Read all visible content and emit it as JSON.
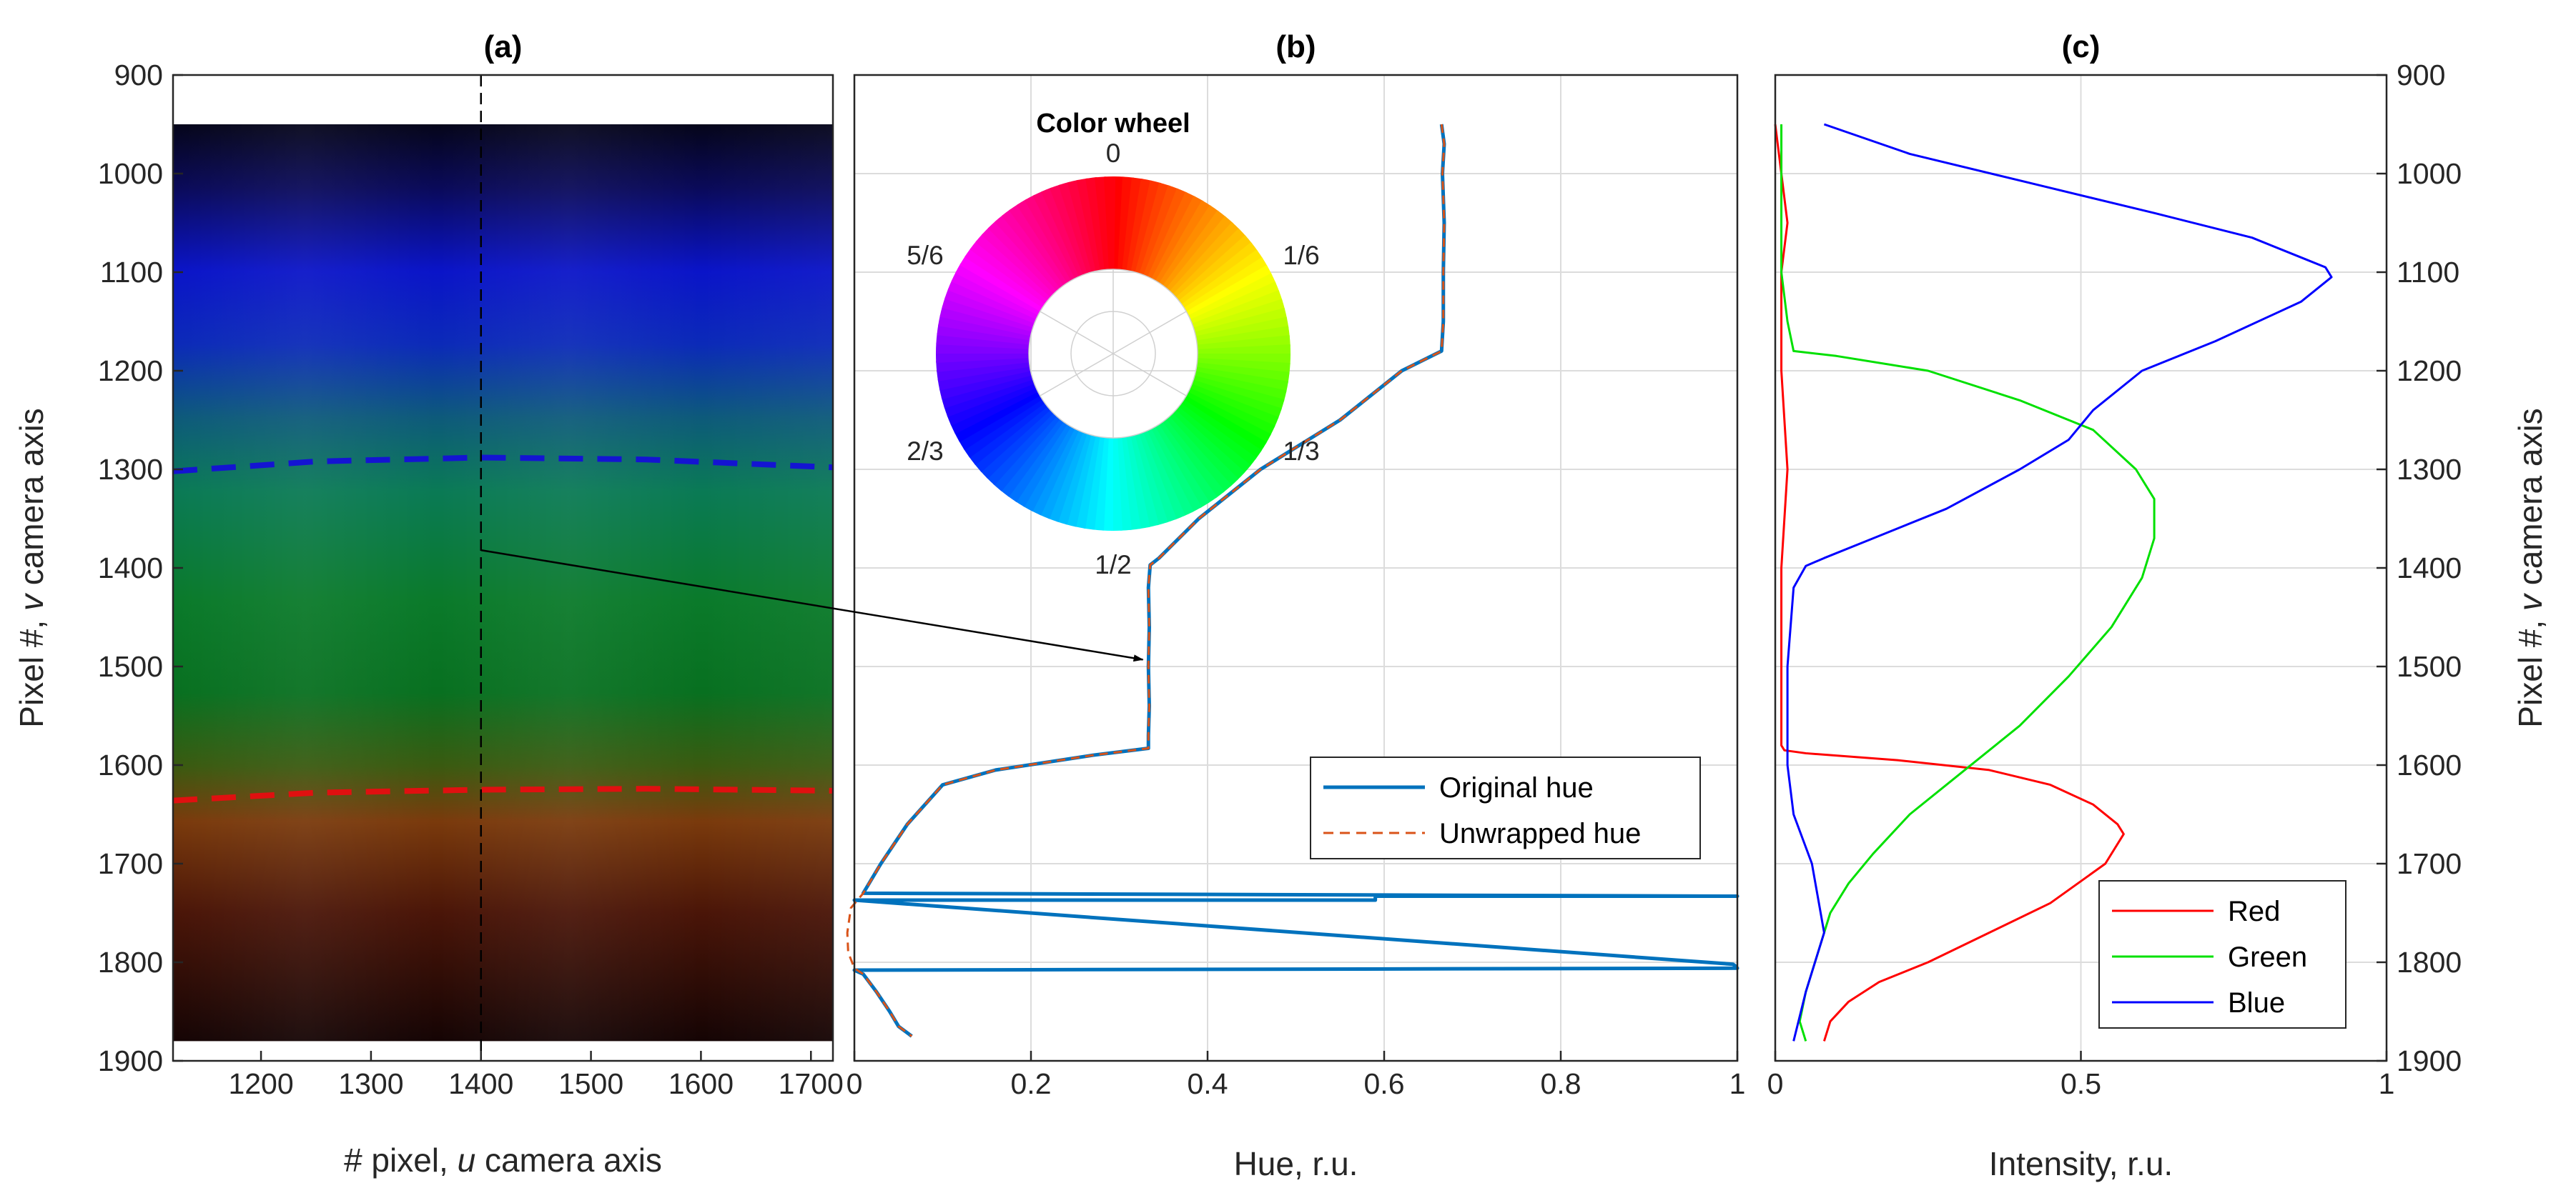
{
  "chart_data": [
    {
      "id": "a",
      "type": "heatmap",
      "title": "(a)",
      "xlabel_prefix": "# pixel, ",
      "xlabel_var": "u",
      "xlabel_suffix": " camera axis",
      "ylabel_prefix": "Pixel #, ",
      "ylabel_var": "v",
      "ylabel_suffix": " camera axis",
      "xlim": [
        1120,
        1720
      ],
      "ylim": [
        900,
        1900
      ],
      "y_reversed": true,
      "x_ticks": [
        "1200",
        "1300",
        "1400",
        "1500",
        "1600",
        "1700"
      ],
      "y_ticks": [
        "900",
        "1000",
        "1100",
        "1200",
        "1300",
        "1400",
        "1500",
        "1600",
        "1700",
        "1800",
        "1900"
      ],
      "image_extent": {
        "u": [
          1120,
          1720
        ],
        "v": [
          950,
          1880
        ]
      },
      "vertical_profile_line_u": 1400,
      "blue_boundary": {
        "u": [
          1120,
          1250,
          1400,
          1550,
          1720
        ],
        "v": [
          1302,
          1292,
          1288,
          1290,
          1298
        ],
        "color": "#1414d2"
      },
      "red_boundary": {
        "u": [
          1120,
          1250,
          1400,
          1550,
          1720
        ],
        "v": [
          1636,
          1628,
          1625,
          1624,
          1626
        ],
        "color": "#e01010"
      },
      "arrow": {
        "from": {
          "panel": "a",
          "u": 1400,
          "v": 1382
        },
        "to": {
          "panel": "b",
          "hue": 0.33,
          "v": 1493
        }
      }
    },
    {
      "id": "b",
      "type": "line",
      "title": "(b)",
      "xlabel": "Hue, r.u.",
      "xlim": [
        0,
        1
      ],
      "ylim": [
        900,
        1900
      ],
      "y_reversed": true,
      "x_ticks": [
        "0",
        "0.2",
        "0.4",
        "0.6",
        "0.8",
        "1"
      ],
      "grid": true,
      "legend": {
        "location": "lower-right",
        "entries": [
          "Original hue",
          "Unwrapped hue"
        ]
      },
      "series": [
        {
          "name": "Original hue",
          "color": "#0072bd",
          "style": "solid",
          "hue": [
            0.665,
            0.668,
            0.666,
            0.668,
            0.667,
            0.667,
            0.665,
            0.62,
            0.55,
            0.46,
            0.39,
            0.345,
            0.335,
            0.333,
            0.334,
            0.333,
            0.334,
            0.333,
            0.333,
            0.27,
            0.16,
            0.1,
            0.06,
            0.03,
            0.01,
            1.0,
            0.59,
            0.59,
            0.0,
            0.995,
            0.998,
            1.0,
            0.0,
            0.01,
            0.025,
            0.04,
            0.05,
            0.065
          ],
          "v": [
            950,
            970,
            1000,
            1050,
            1100,
            1150,
            1180,
            1200,
            1250,
            1300,
            1350,
            1390,
            1397,
            1420,
            1460,
            1500,
            1540,
            1570,
            1583,
            1590,
            1605,
            1620,
            1660,
            1700,
            1730,
            1733,
            1733,
            1737,
            1737,
            1802,
            1804,
            1806,
            1808,
            1812,
            1830,
            1850,
            1865,
            1875
          ]
        },
        {
          "name": "Unwrapped hue",
          "color": "#d95319",
          "style": "dashed",
          "hue": [
            0.665,
            0.668,
            0.666,
            0.668,
            0.667,
            0.667,
            0.665,
            0.62,
            0.55,
            0.46,
            0.39,
            0.345,
            0.335,
            0.333,
            0.334,
            0.333,
            0.334,
            0.333,
            0.333,
            0.27,
            0.16,
            0.1,
            0.06,
            0.03,
            0.01,
            -0.004,
            -0.008,
            -0.007,
            0.0,
            0.01,
            0.025,
            0.04,
            0.05,
            0.065
          ],
          "v": [
            950,
            970,
            1000,
            1050,
            1100,
            1150,
            1180,
            1200,
            1250,
            1300,
            1350,
            1390,
            1397,
            1420,
            1460,
            1500,
            1540,
            1570,
            1583,
            1590,
            1605,
            1620,
            1660,
            1700,
            1730,
            1745,
            1770,
            1790,
            1806,
            1812,
            1830,
            1850,
            1865,
            1875
          ]
        }
      ],
      "color_wheel": {
        "title": "Color wheel",
        "labels": [
          {
            "text": "0",
            "hue": 0
          },
          {
            "text": "1/6",
            "hue": 0.1667
          },
          {
            "text": "1/3",
            "hue": 0.3333
          },
          {
            "text": "1/2",
            "hue": 0.5
          },
          {
            "text": "2/3",
            "hue": 0.6667
          },
          {
            "text": "5/6",
            "hue": 0.8333
          }
        ]
      }
    },
    {
      "id": "c",
      "type": "line",
      "title": "(c)",
      "xlabel": "Intensity, r.u.",
      "ylabel_prefix": "Pixel #, ",
      "ylabel_var": "v",
      "ylabel_suffix": " camera axis",
      "xlim": [
        0,
        1
      ],
      "ylim": [
        900,
        1900
      ],
      "y_reversed": true,
      "x_ticks": [
        "0",
        "0.5",
        "1"
      ],
      "y_ticks": [
        "900",
        "1000",
        "1100",
        "1200",
        "1300",
        "1400",
        "1500",
        "1600",
        "1700",
        "1800",
        "1900"
      ],
      "grid": true,
      "legend": {
        "location": "lower-right",
        "entries": [
          "Red",
          "Green",
          "Blue"
        ]
      },
      "series": [
        {
          "name": "Red",
          "color": "#ff0000",
          "intensity": [
            0.0,
            0.01,
            0.02,
            0.01,
            0.01,
            0.02,
            0.01,
            0.01,
            0.01,
            0.015,
            0.05,
            0.2,
            0.35,
            0.45,
            0.52,
            0.56,
            0.57,
            0.54,
            0.45,
            0.35,
            0.25,
            0.17,
            0.12,
            0.09,
            0.08
          ],
          "v": [
            950,
            1000,
            1050,
            1100,
            1200,
            1300,
            1400,
            1500,
            1580,
            1585,
            1588,
            1595,
            1605,
            1620,
            1640,
            1660,
            1670,
            1700,
            1740,
            1770,
            1800,
            1820,
            1840,
            1860,
            1880
          ]
        },
        {
          "name": "Green",
          "color": "#00e000",
          "intensity": [
            0.01,
            0.01,
            0.01,
            0.01,
            0.02,
            0.03,
            0.1,
            0.25,
            0.4,
            0.52,
            0.59,
            0.62,
            0.62,
            0.6,
            0.55,
            0.48,
            0.4,
            0.3,
            0.22,
            0.16,
            0.12,
            0.09,
            0.07,
            0.05,
            0.04,
            0.05
          ],
          "v": [
            950,
            1000,
            1050,
            1100,
            1150,
            1180,
            1185,
            1200,
            1230,
            1260,
            1300,
            1330,
            1370,
            1410,
            1460,
            1510,
            1560,
            1610,
            1650,
            1690,
            1720,
            1750,
            1790,
            1830,
            1860,
            1880
          ]
        },
        {
          "name": "Blue",
          "color": "#0000ff",
          "intensity": [
            0.08,
            0.22,
            0.42,
            0.62,
            0.78,
            0.86,
            0.9,
            0.91,
            0.86,
            0.72,
            0.6,
            0.52,
            0.48,
            0.4,
            0.28,
            0.16,
            0.08,
            0.05,
            0.03,
            0.02,
            0.02,
            0.03,
            0.06,
            0.08,
            0.05,
            0.03
          ],
          "v": [
            950,
            980,
            1010,
            1040,
            1065,
            1085,
            1095,
            1105,
            1130,
            1170,
            1200,
            1240,
            1270,
            1300,
            1340,
            1370,
            1390,
            1398,
            1420,
            1500,
            1600,
            1650,
            1700,
            1770,
            1830,
            1880
          ]
        }
      ]
    }
  ]
}
